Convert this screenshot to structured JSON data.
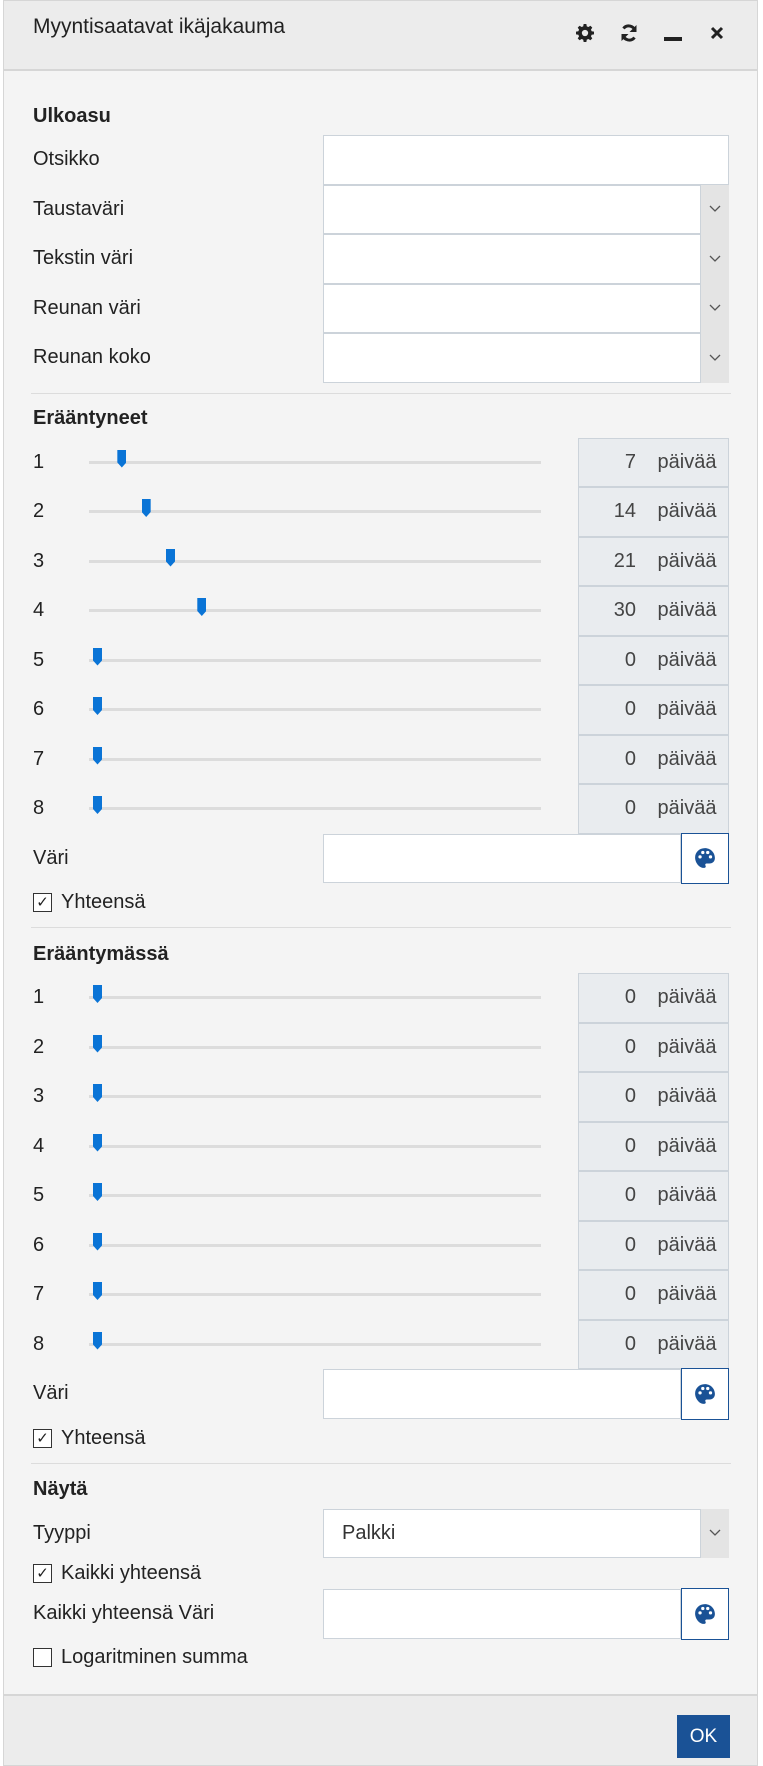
{
  "window": {
    "title": "Myyntisaatavat ikäjakauma",
    "icons": [
      "gear-icon",
      "refresh-icon",
      "minimize-icon",
      "close-icon"
    ]
  },
  "appearance": {
    "heading": "Ulkoasu",
    "fields": [
      {
        "label": "Otsikko",
        "type": "text",
        "value": ""
      },
      {
        "label": "Taustaväri",
        "type": "select",
        "value": ""
      },
      {
        "label": "Tekstin väri",
        "type": "select",
        "value": ""
      },
      {
        "label": "Reunan väri",
        "type": "select",
        "value": ""
      },
      {
        "label": "Reunan koko",
        "type": "select",
        "value": ""
      }
    ]
  },
  "overdue": {
    "heading": "Erääntyneet",
    "unit": "päivää",
    "sliders": [
      {
        "label": "1",
        "value": 7
      },
      {
        "label": "2",
        "value": 14
      },
      {
        "label": "3",
        "value": 21
      },
      {
        "label": "4",
        "value": 30
      },
      {
        "label": "5",
        "value": 0
      },
      {
        "label": "6",
        "value": 0
      },
      {
        "label": "7",
        "value": 0
      },
      {
        "label": "8",
        "value": 0
      }
    ],
    "color_label": "Väri",
    "color_value": "",
    "total_label": "Yhteensä",
    "total_checked": true
  },
  "upcoming": {
    "heading": "Erääntymässä",
    "unit": "päivää",
    "sliders": [
      {
        "label": "1",
        "value": 0
      },
      {
        "label": "2",
        "value": 0
      },
      {
        "label": "3",
        "value": 0
      },
      {
        "label": "4",
        "value": 0
      },
      {
        "label": "5",
        "value": 0
      },
      {
        "label": "6",
        "value": 0
      },
      {
        "label": "7",
        "value": 0
      },
      {
        "label": "8",
        "value": 0
      }
    ],
    "color_label": "Väri",
    "color_value": "",
    "total_label": "Yhteensä",
    "total_checked": true
  },
  "show": {
    "heading": "Näytä",
    "type_label": "Tyyppi",
    "type_value": "Palkki",
    "all_total_label": "Kaikki yhteensä",
    "all_total_checked": true,
    "all_total_color_label": "Kaikki yhteensä Väri",
    "all_total_color_value": "",
    "log_label": "Logaritminen summa",
    "log_checked": false
  },
  "footer": {
    "ok_label": "OK"
  },
  "colors": {
    "accent": "#1a5296",
    "slider": "#0a74d6"
  }
}
